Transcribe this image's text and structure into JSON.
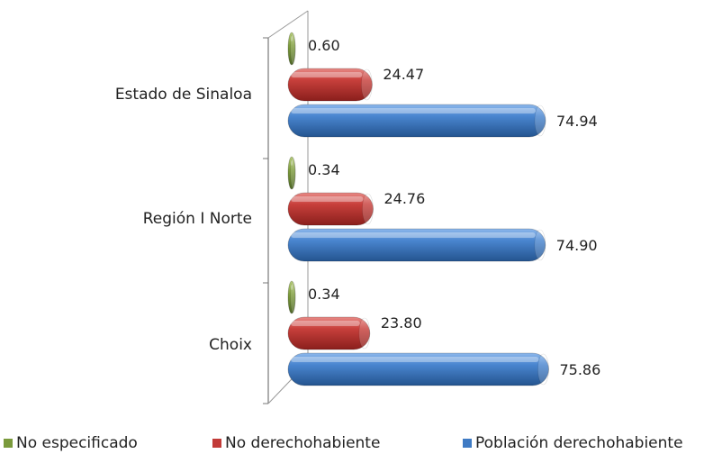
{
  "chart_data": {
    "type": "bar",
    "orientation": "horizontal",
    "style": "3d-cylinder",
    "categories": [
      "Estado de Sinaloa",
      "Región I Norte",
      "Choix"
    ],
    "series": [
      {
        "name": "No especificado",
        "color": "#7a9a3c",
        "values": [
          0.6,
          0.34,
          0.34
        ],
        "labels": [
          "0.60",
          "0.34",
          "0.34"
        ]
      },
      {
        "name": "No derechohabiente",
        "color": "#c23b38",
        "values": [
          24.47,
          24.76,
          23.8
        ],
        "labels": [
          "24.47",
          "24.76",
          "23.80"
        ]
      },
      {
        "name": "Población derechohabiente",
        "color": "#3f7bc4",
        "values": [
          74.94,
          74.9,
          75.86
        ],
        "labels": [
          "74.94",
          "74.90",
          "75.86"
        ]
      }
    ],
    "xlim": [
      0,
      80
    ],
    "grid": false,
    "legend_position": "bottom"
  }
}
